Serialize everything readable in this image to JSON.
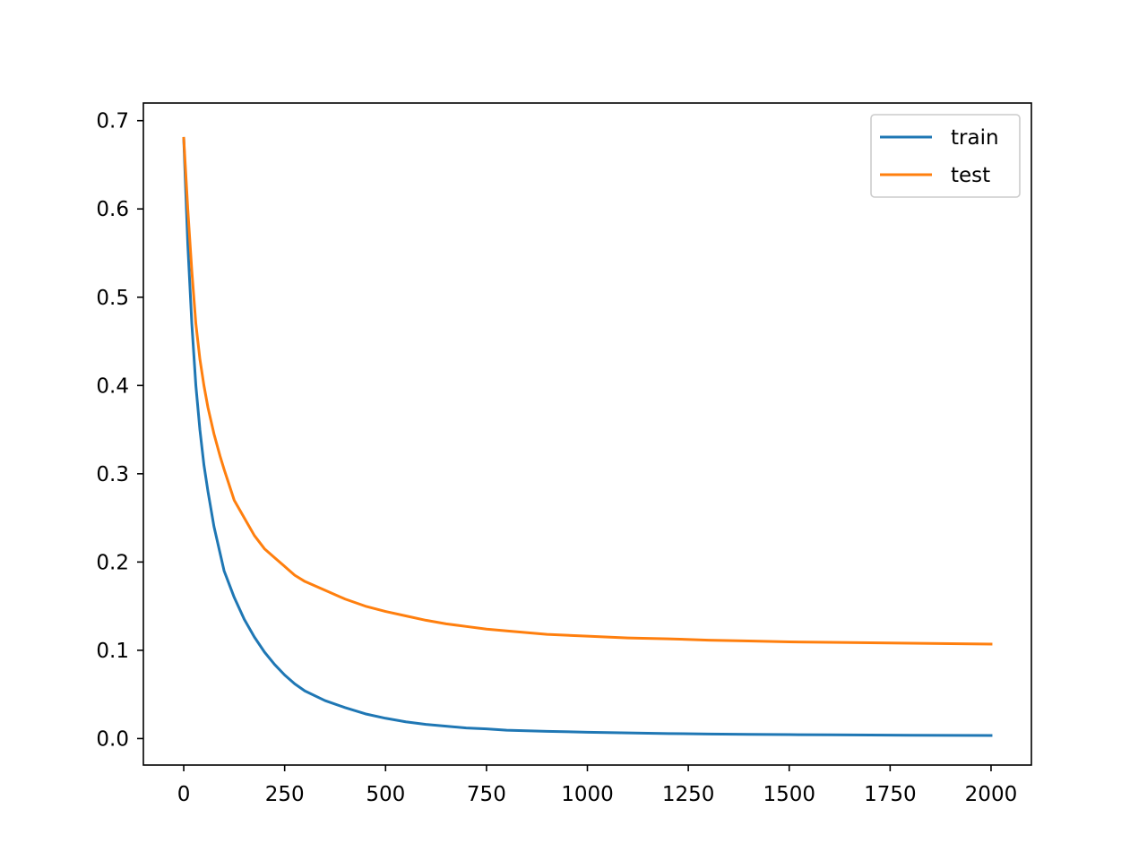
{
  "chart_data": {
    "type": "line",
    "title": "",
    "xlabel": "",
    "ylabel": "",
    "xlim": [
      -100,
      2100
    ],
    "ylim": [
      -0.03,
      0.72
    ],
    "x_ticks": [
      0,
      250,
      500,
      750,
      1000,
      1250,
      1500,
      1750,
      2000
    ],
    "x_tick_labels": [
      "0",
      "250",
      "500",
      "750",
      "1000",
      "1250",
      "1500",
      "1750",
      "2000"
    ],
    "y_ticks": [
      0.0,
      0.1,
      0.2,
      0.3,
      0.4,
      0.5,
      0.6,
      0.7
    ],
    "y_tick_labels": [
      "0.0",
      "0.1",
      "0.2",
      "0.3",
      "0.4",
      "0.5",
      "0.6",
      "0.7"
    ],
    "grid": false,
    "legend": {
      "placement": "top-right",
      "entries": [
        "train",
        "test"
      ]
    },
    "series": [
      {
        "name": "train",
        "color": "#1f77b4",
        "x": [
          0,
          10,
          20,
          30,
          40,
          50,
          60,
          75,
          90,
          100,
          125,
          150,
          175,
          200,
          225,
          250,
          275,
          300,
          350,
          400,
          450,
          500,
          550,
          600,
          650,
          700,
          750,
          800,
          900,
          1000,
          1100,
          1200,
          1300,
          1400,
          1500,
          1600,
          1700,
          1800,
          1900,
          2000
        ],
        "y": [
          0.68,
          0.56,
          0.47,
          0.4,
          0.35,
          0.31,
          0.28,
          0.24,
          0.21,
          0.19,
          0.16,
          0.135,
          0.115,
          0.098,
          0.084,
          0.072,
          0.062,
          0.054,
          0.043,
          0.035,
          0.028,
          0.023,
          0.019,
          0.016,
          0.014,
          0.012,
          0.011,
          0.0095,
          0.0082,
          0.0072,
          0.0064,
          0.0057,
          0.0052,
          0.0048,
          0.0045,
          0.0042,
          0.004,
          0.0038,
          0.0036,
          0.0035
        ]
      },
      {
        "name": "test",
        "color": "#ff7f0e",
        "x": [
          0,
          10,
          20,
          30,
          40,
          50,
          60,
          75,
          90,
          100,
          125,
          150,
          175,
          200,
          225,
          250,
          275,
          300,
          350,
          400,
          450,
          500,
          550,
          600,
          650,
          700,
          750,
          800,
          900,
          1000,
          1100,
          1200,
          1300,
          1400,
          1500,
          1600,
          1700,
          1800,
          1900,
          2000
        ],
        "y": [
          0.68,
          0.6,
          0.53,
          0.47,
          0.43,
          0.4,
          0.375,
          0.345,
          0.32,
          0.305,
          0.27,
          0.25,
          0.23,
          0.215,
          0.205,
          0.195,
          0.185,
          0.178,
          0.168,
          0.158,
          0.15,
          0.144,
          0.139,
          0.134,
          0.13,
          0.127,
          0.124,
          0.122,
          0.118,
          0.116,
          0.114,
          0.113,
          0.1115,
          0.1105,
          0.1095,
          0.109,
          0.1085,
          0.108,
          0.1075,
          0.107
        ]
      }
    ]
  }
}
